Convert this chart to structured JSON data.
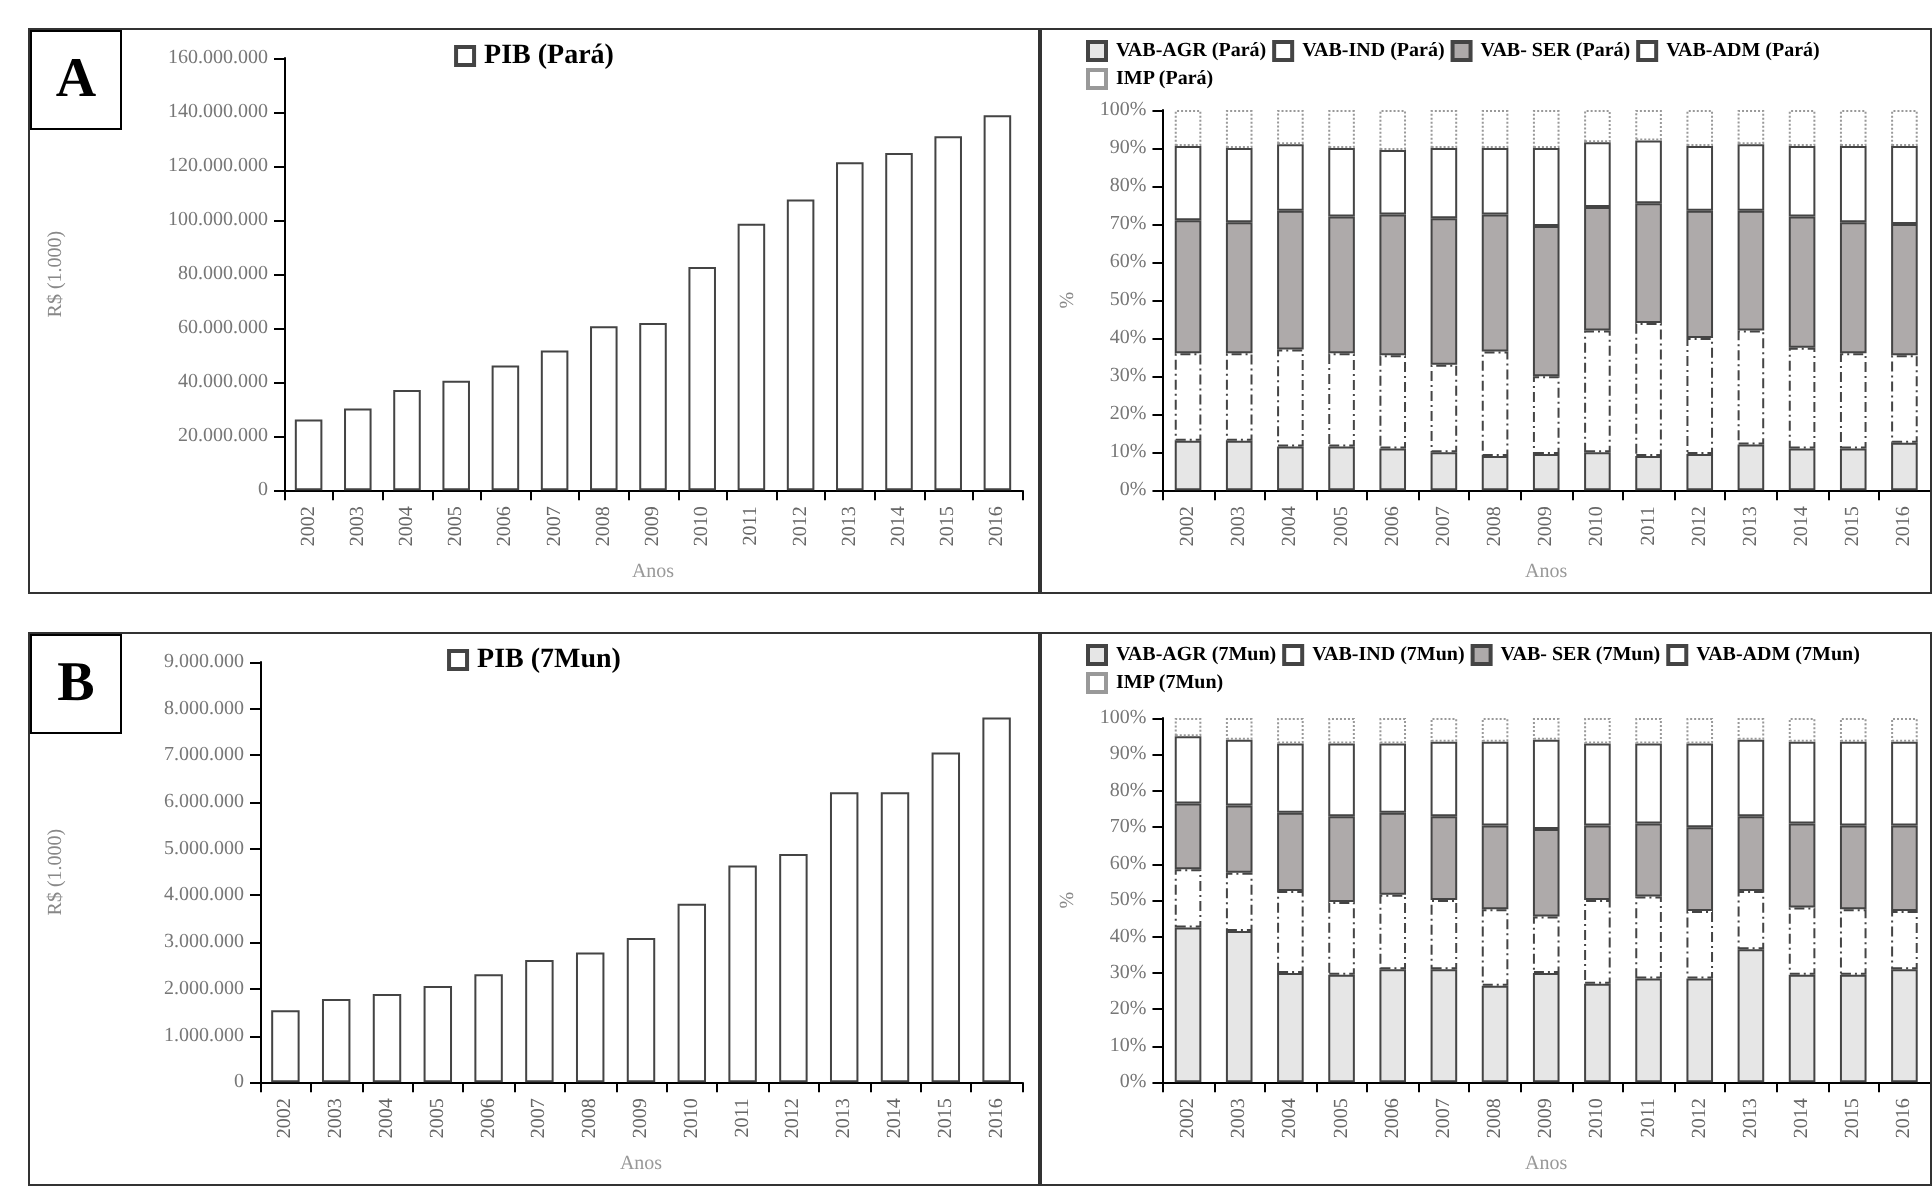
{
  "chart_data": [
    {
      "type": "bar",
      "annotations": [
        "A"
      ],
      "xlabel": "Anos",
      "ylabel": "R$ (1.000)",
      "legend": "top",
      "grid": false,
      "categories": [
        "2002",
        "2003",
        "2004",
        "2005",
        "2006",
        "2007",
        "2008",
        "2009",
        "2010",
        "2011",
        "2012",
        "2013",
        "2014",
        "2015",
        "2016"
      ],
      "ylim": [
        0,
        160000000
      ],
      "yticks": [
        {
          "value": 0,
          "label": "0"
        },
        {
          "value": 20000000,
          "label": "20.000.000"
        },
        {
          "value": 40000000,
          "label": "40.000.000"
        },
        {
          "value": 60000000,
          "label": "60.000.000"
        },
        {
          "value": 80000000,
          "label": "80.000.000"
        },
        {
          "value": 100000000,
          "label": "100.000.000"
        },
        {
          "value": 120000000,
          "label": "120.000.000"
        },
        {
          "value": 140000000,
          "label": "140.000.000"
        },
        {
          "value": 160000000,
          "label": "160.000.000"
        }
      ],
      "series": [
        {
          "name": "PIB (Pará)",
          "color": "#ffffff",
          "line_style": "solid",
          "values": [
            26200000,
            30200000,
            37100000,
            40500000,
            46200000,
            51700000,
            60700000,
            61900000,
            82600000,
            98600000,
            107600000,
            121400000,
            124800000,
            131000000,
            138800000
          ]
        }
      ]
    },
    {
      "type": "bar",
      "stacked": true,
      "xlabel": "Anos",
      "ylabel": "%",
      "legend": "top left",
      "grid": false,
      "categories": [
        "2002",
        "2003",
        "2004",
        "2005",
        "2006",
        "2007",
        "2008",
        "2009",
        "2010",
        "2011",
        "2012",
        "2013",
        "2014",
        "2015",
        "2016"
      ],
      "ylim": [
        0,
        100
      ],
      "yticks": [
        {
          "value": 0,
          "label": "0%"
        },
        {
          "value": 10,
          "label": "10%"
        },
        {
          "value": 20,
          "label": "20%"
        },
        {
          "value": 30,
          "label": "30%"
        },
        {
          "value": 40,
          "label": "40%"
        },
        {
          "value": 50,
          "label": "50%"
        },
        {
          "value": 60,
          "label": "60%"
        },
        {
          "value": 70,
          "label": "70%"
        },
        {
          "value": 80,
          "label": "80%"
        },
        {
          "value": 90,
          "label": "90%"
        },
        {
          "value": 100,
          "label": "100%"
        }
      ],
      "series": [
        {
          "name": "VAB-AGR (Pará)",
          "color": "#e6e6e6",
          "line_style": "solid",
          "values": [
            13,
            13,
            11.5,
            11.5,
            11,
            10,
            9,
            9.5,
            10,
            9,
            9.5,
            12,
            11,
            11,
            12.5
          ]
        },
        {
          "name": "VAB-IND (Pará)",
          "color": "#ffffff",
          "line_style": "dashed",
          "values": [
            23,
            23,
            25.5,
            24.5,
            24.5,
            23,
            27.5,
            20.5,
            32,
            35,
            30.5,
            30,
            26.5,
            25,
            23
          ]
        },
        {
          "name": "VAB- SER (Pará)",
          "color": "#aeaaaa",
          "line_style": "solid",
          "values": [
            35,
            34.5,
            36.5,
            36,
            37,
            38.5,
            36,
            39.5,
            32.5,
            31.5,
            33.5,
            31.5,
            34.5,
            34.5,
            34.5
          ]
        },
        {
          "name": "VAB-ADM (Pará)",
          "color": "#ffffff",
          "line_style": "solid",
          "values": [
            19.5,
            19.5,
            17.5,
            18,
            17,
            18.5,
            17.5,
            20.5,
            17,
            16.5,
            17,
            17.5,
            18.5,
            20,
            20.5
          ]
        },
        {
          "name": "IMP (Pará)",
          "color": "#ffffff",
          "line_style": "dotted",
          "values": [
            9.5,
            10,
            9,
            10,
            10.5,
            10,
            10,
            10,
            8.5,
            8,
            9.5,
            9,
            9.5,
            9.5,
            9.5
          ]
        }
      ]
    },
    {
      "type": "bar",
      "annotations": [
        "B"
      ],
      "xlabel": "Anos",
      "ylabel": "R$ (1.000)",
      "legend": "top",
      "grid": false,
      "categories": [
        "2002",
        "2003",
        "2004",
        "2005",
        "2006",
        "2007",
        "2008",
        "2009",
        "2010",
        "2011",
        "2012",
        "2013",
        "2014",
        "2015",
        "2016"
      ],
      "ylim": [
        0,
        9000000
      ],
      "yticks": [
        {
          "value": 0,
          "label": "0"
        },
        {
          "value": 1000000,
          "label": "1.000.000"
        },
        {
          "value": 2000000,
          "label": "2.000.000"
        },
        {
          "value": 3000000,
          "label": "3.000.000"
        },
        {
          "value": 4000000,
          "label": "4.000.000"
        },
        {
          "value": 5000000,
          "label": "5.000.000"
        },
        {
          "value": 6000000,
          "label": "6.000.000"
        },
        {
          "value": 7000000,
          "label": "7.000.000"
        },
        {
          "value": 8000000,
          "label": "8.000.000"
        },
        {
          "value": 9000000,
          "label": "9.000.000"
        }
      ],
      "series": [
        {
          "name": "PIB (7Mun)",
          "color": "#ffffff",
          "line_style": "solid",
          "values": [
            1540000,
            1780000,
            1890000,
            2060000,
            2310000,
            2620000,
            2780000,
            3090000,
            3820000,
            4640000,
            4890000,
            6210000,
            6210000,
            7060000,
            7810000
          ]
        }
      ]
    },
    {
      "type": "bar",
      "stacked": true,
      "xlabel": "Anos",
      "ylabel": "%",
      "legend": "top left",
      "grid": false,
      "categories": [
        "2002",
        "2003",
        "2004",
        "2005",
        "2006",
        "2007",
        "2008",
        "2009",
        "2010",
        "2011",
        "2012",
        "2013",
        "2014",
        "2015",
        "2016"
      ],
      "ylim": [
        0,
        100
      ],
      "yticks": [
        {
          "value": 0,
          "label": "0%"
        },
        {
          "value": 10,
          "label": "10%"
        },
        {
          "value": 20,
          "label": "20%"
        },
        {
          "value": 30,
          "label": "30%"
        },
        {
          "value": 40,
          "label": "40%"
        },
        {
          "value": 50,
          "label": "50%"
        },
        {
          "value": 60,
          "label": "60%"
        },
        {
          "value": 70,
          "label": "70%"
        },
        {
          "value": 80,
          "label": "80%"
        },
        {
          "value": 90,
          "label": "90%"
        },
        {
          "value": 100,
          "label": "100%"
        }
      ],
      "series": [
        {
          "name": "VAB-AGR (7Mun)",
          "color": "#e6e6e6",
          "line_style": "solid",
          "values": [
            42.5,
            41.5,
            30,
            29.5,
            31,
            31,
            26.5,
            30,
            27,
            28.5,
            28.5,
            36.5,
            29.5,
            29.5,
            31
          ]
        },
        {
          "name": "VAB-IND (7Mun)",
          "color": "#ffffff",
          "line_style": "dashed",
          "values": [
            16,
            16,
            22.5,
            20,
            20.5,
            19,
            21,
            15.5,
            23,
            22.5,
            18.5,
            16,
            18.5,
            18,
            16
          ]
        },
        {
          "name": "VAB- SER (7Mun)",
          "color": "#aeaaaa",
          "line_style": "solid",
          "values": [
            18,
            18.5,
            21.5,
            23.5,
            22.5,
            23,
            23,
            24,
            20.5,
            20,
            23,
            20.5,
            23,
            23,
            23.5
          ]
        },
        {
          "name": "VAB-ADM (7Mun)",
          "color": "#ffffff",
          "line_style": "solid",
          "values": [
            18.5,
            18,
            19,
            20,
            19,
            20.5,
            23,
            24.5,
            22.5,
            22,
            23,
            21,
            22.5,
            23,
            23
          ]
        },
        {
          "name": "IMP (7Mun)",
          "color": "#ffffff",
          "line_style": "dotted",
          "values": [
            5,
            6,
            7,
            7,
            7,
            6.5,
            6.5,
            6,
            7,
            7,
            7,
            6,
            6.5,
            6.5,
            6.5
          ]
        }
      ]
    }
  ]
}
